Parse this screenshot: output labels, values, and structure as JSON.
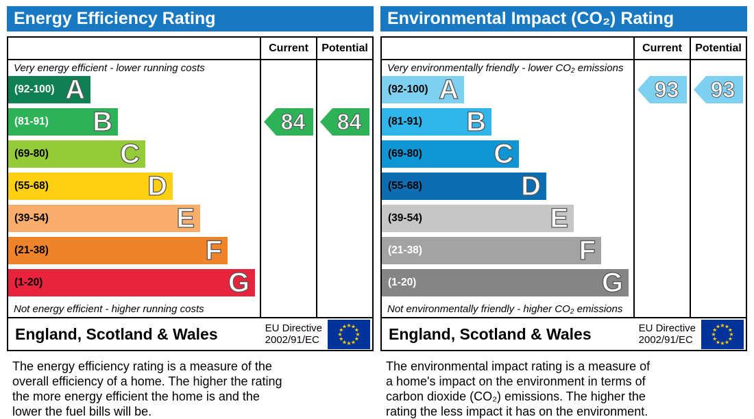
{
  "chart_data": [
    {
      "type": "bar",
      "title": "Energy Efficiency Rating",
      "header_color": "#1879c2",
      "columns": {
        "current": "Current",
        "potential": "Potential"
      },
      "top_caption": "Very energy efficient - lower running costs",
      "bottom_caption": "Not energy efficient - higher running costs",
      "bands": [
        {
          "letter": "A",
          "range": "(92-100)",
          "min": 92,
          "max": 100,
          "color": "#0f8052",
          "range_color": "#ffffff"
        },
        {
          "letter": "B",
          "range": "(81-91)",
          "min": 81,
          "max": 91,
          "color": "#2eb258",
          "range_color": "#ffffff"
        },
        {
          "letter": "C",
          "range": "(69-80)",
          "min": 69,
          "max": 80,
          "color": "#95ca38",
          "range_color": "#000000"
        },
        {
          "letter": "D",
          "range": "(55-68)",
          "min": 55,
          "max": 68,
          "color": "#fed012",
          "range_color": "#000000"
        },
        {
          "letter": "E",
          "range": "(39-54)",
          "min": 39,
          "max": 54,
          "color": "#f9ad6b",
          "range_color": "#000000"
        },
        {
          "letter": "F",
          "range": "(21-38)",
          "min": 21,
          "max": 38,
          "color": "#ee8329",
          "range_color": "#000000"
        },
        {
          "letter": "G",
          "range": "(1-20)",
          "min": 1,
          "max": 20,
          "color": "#e8233c",
          "range_color": "#000000"
        }
      ],
      "current": 84,
      "potential": 84,
      "footer": {
        "region": "England, Scotland & Wales",
        "directive_line1": "EU Directive",
        "directive_line2": "2002/91/EC",
        "flag_colors": {
          "field": "#003399",
          "stars": "#ffcc00"
        }
      },
      "description_lines": [
        "The energy efficiency rating is a measure of the",
        "overall efficiency of a home. The higher the rating",
        "the more energy efficient the home is and the",
        "lower the fuel bills will be."
      ]
    },
    {
      "type": "bar",
      "title": "Environmental Impact (CO₂) Rating",
      "header_color": "#1879c2",
      "columns": {
        "current": "Current",
        "potential": "Potential"
      },
      "top_caption": "Very environmentally friendly - lower CO₂ emissions",
      "bottom_caption": "Not environmentally friendly - higher CO₂ emissions",
      "bands": [
        {
          "letter": "A",
          "range": "(92-100)",
          "min": 92,
          "max": 100,
          "color": "#7ed0f1",
          "range_color": "#000000"
        },
        {
          "letter": "B",
          "range": "(81-91)",
          "min": 81,
          "max": 91,
          "color": "#2fb5e9",
          "range_color": "#000000"
        },
        {
          "letter": "C",
          "range": "(69-80)",
          "min": 69,
          "max": 80,
          "color": "#0e96d4",
          "range_color": "#000000"
        },
        {
          "letter": "D",
          "range": "(55-68)",
          "min": 55,
          "max": 68,
          "color": "#0b6eb3",
          "range_color": "#000000"
        },
        {
          "letter": "E",
          "range": "(39-54)",
          "min": 39,
          "max": 54,
          "color": "#c6c6c6",
          "range_color": "#000000"
        },
        {
          "letter": "F",
          "range": "(21-38)",
          "min": 21,
          "max": 38,
          "color": "#a3a3a3",
          "range_color": "#ffffff"
        },
        {
          "letter": "G",
          "range": "(1-20)",
          "min": 1,
          "max": 20,
          "color": "#858585",
          "range_color": "#ffffff"
        }
      ],
      "current": 93,
      "potential": 93,
      "footer": {
        "region": "England, Scotland & Wales",
        "directive_line1": "EU Directive",
        "directive_line2": "2002/91/EC",
        "flag_colors": {
          "field": "#003399",
          "stars": "#ffcc00"
        }
      },
      "description_lines": [
        "The environmental impact rating is a measure of",
        "a home's impact on the environment in terms of",
        "carbon dioxide (CO₂) emissions. The higher the",
        "rating the less impact it has on the environment."
      ]
    }
  ]
}
